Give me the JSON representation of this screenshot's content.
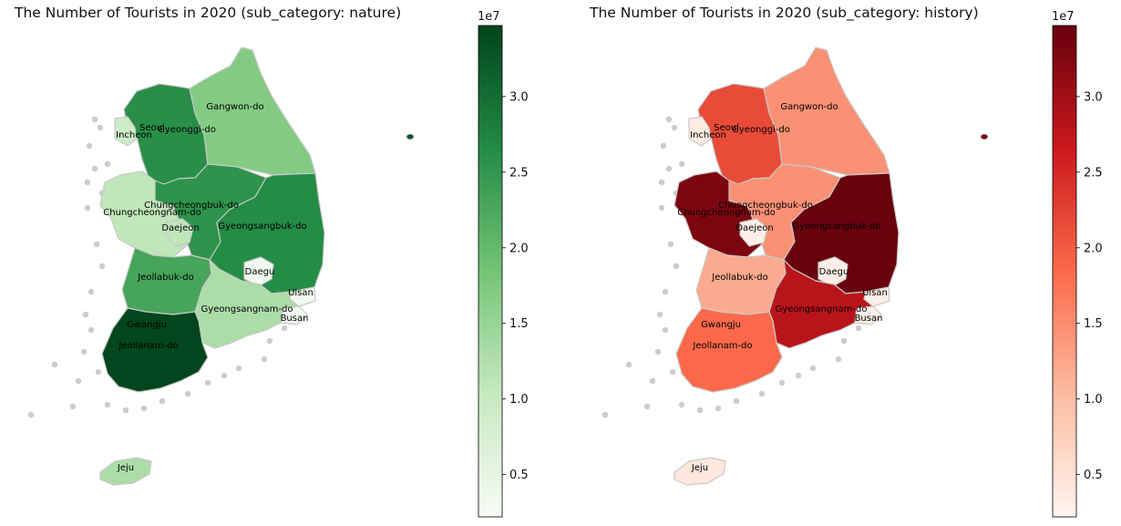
{
  "panels": [
    {
      "id": "nature",
      "title": "The Number of Tourists in 2020 (sub_category: nature)",
      "colormap": "Greens",
      "colors": [
        "#f7fcf5",
        "#c7e9c0",
        "#74c476",
        "#238b45",
        "#00441b"
      ],
      "colorbar": {
        "exponent": "1e7",
        "ticks": [
          "0.5",
          "1.0",
          "1.5",
          "2.0",
          "2.5",
          "3.0"
        ],
        "tick_values": [
          0.5,
          1.0,
          1.5,
          2.0,
          2.5,
          3.0
        ],
        "min": 0.22,
        "max": 3.47
      }
    },
    {
      "id": "history",
      "title": "The Number of Tourists in 2020 (sub_category: history)",
      "colormap": "Reds",
      "colors": [
        "#fff5f0",
        "#fcbba1",
        "#fb6a4a",
        "#cb181d",
        "#67000d"
      ],
      "colorbar": {
        "exponent": "1e7",
        "ticks": [
          "0.5",
          "1.0",
          "1.5",
          "2.0",
          "2.5",
          "3.0"
        ],
        "tick_values": [
          0.5,
          1.0,
          1.5,
          2.0,
          2.5,
          3.0
        ],
        "min": 0.22,
        "max": 3.47
      }
    }
  ],
  "regions": [
    {
      "name": "Seoul",
      "nature": 0.2,
      "history": 3.45
    },
    {
      "name": "Gyeonggi-do",
      "nature": 2.6,
      "history": 2.15
    },
    {
      "name": "Incheon",
      "nature": 0.9,
      "history": 0.35
    },
    {
      "name": "Gangwon-do",
      "nature": 1.7,
      "history": 1.45
    },
    {
      "name": "Chungcheongbuk-do",
      "nature": 2.55,
      "history": 1.45
    },
    {
      "name": "Chungcheongnam-do",
      "nature": 1.1,
      "history": 3.3
    },
    {
      "name": "Daejeon",
      "nature": 1.1,
      "history": 0.3
    },
    {
      "name": "Gyeongsangbuk-do",
      "nature": 2.65,
      "history": 3.45
    },
    {
      "name": "Daegu",
      "nature": 0.3,
      "history": 0.3
    },
    {
      "name": "Jeollabuk-do",
      "nature": 2.3,
      "history": 1.2
    },
    {
      "name": "Gyeongsangnam-do",
      "nature": 1.3,
      "history": 2.8
    },
    {
      "name": "Ulsan",
      "nature": 0.3,
      "history": 0.3
    },
    {
      "name": "Busan",
      "nature": 0.3,
      "history": 0.3
    },
    {
      "name": "Gwangju",
      "nature": 0.3,
      "history": 1.9
    },
    {
      "name": "Jeollanam-do",
      "nature": 3.45,
      "history": 1.85
    },
    {
      "name": "Jeju",
      "nature": 1.3,
      "history": 0.4
    }
  ]
}
